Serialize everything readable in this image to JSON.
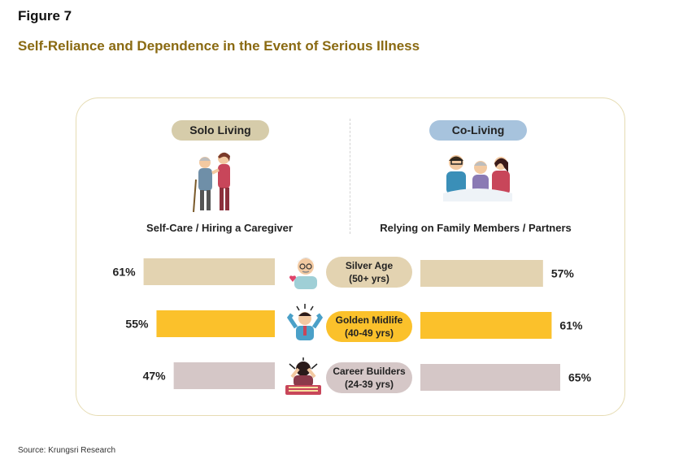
{
  "figure_label": "Figure 7",
  "title": "Self-Reliance and Dependence in the Event of Serious Illness",
  "source": "Source: Krungsri Research",
  "columns": {
    "solo": {
      "label": "Solo Living",
      "sublabel": "Self-Care / Hiring a Caregiver"
    },
    "co": {
      "label": "Co-Living",
      "sublabel": "Relying on Family Members / Partners"
    }
  },
  "groups": [
    {
      "name": "Silver Age",
      "range": "(50+ yrs)"
    },
    {
      "name": "Golden Midlife",
      "range": "(40-49 yrs)"
    },
    {
      "name": "Career Builders",
      "range": "(24-39 yrs)"
    }
  ],
  "colors": {
    "silver": "#e3d3b1",
    "golden": "#fbc12b",
    "career": "#d5c7c7",
    "title": "#8a6a12",
    "solo_pill": "#d6ccaa",
    "co_pill": "#a7c3dd"
  },
  "chart_data": {
    "type": "bar",
    "orientation": "horizontal-diverging",
    "categories": [
      "Silver Age (50+ yrs)",
      "Golden Midlife (40-49 yrs)",
      "Career Builders (24-39 yrs)"
    ],
    "series": [
      {
        "name": "Solo Living",
        "values": [
          61,
          55,
          47
        ],
        "labels": [
          "61%",
          "55%",
          "47%"
        ]
      },
      {
        "name": "Co-Living",
        "values": [
          57,
          61,
          65
        ],
        "labels": [
          "57%",
          "61%",
          "65%"
        ]
      }
    ],
    "unit": "%",
    "title": "Self-Reliance and Dependence in the Event of Serious Illness"
  }
}
